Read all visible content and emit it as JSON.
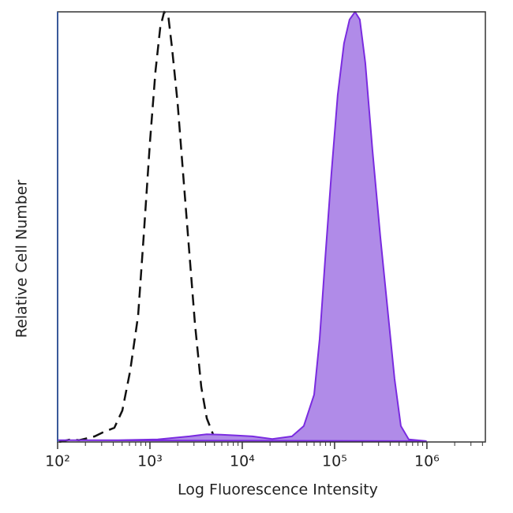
{
  "chart_data": {
    "type": "histogram-overlay",
    "xlabel": "Log Fluorescence Intensity",
    "ylabel": "Relative Cell Number",
    "xscale": "log",
    "xlim": [
      100,
      4300000
    ],
    "ylim": [
      0,
      100
    ],
    "xticks": [
      {
        "value": 100,
        "label": "10²"
      },
      {
        "value": 1000,
        "label": "10³"
      },
      {
        "value": 10000,
        "label": "10⁴"
      },
      {
        "value": 100000,
        "label": "10⁵"
      },
      {
        "value": 1000000,
        "label": "10⁶"
      }
    ],
    "xminorticks": [
      200,
      300,
      400,
      500,
      600,
      700,
      800,
      900,
      2000,
      3000,
      4000,
      5000,
      6000,
      7000,
      8000,
      9000,
      20000,
      30000,
      40000,
      50000,
      60000,
      70000,
      80000,
      90000,
      200000,
      300000,
      400000,
      500000,
      600000,
      700000,
      800000,
      900000,
      2000000,
      3000000,
      4000000
    ],
    "series": [
      {
        "color": "#111111",
        "style": "dashed",
        "filled": false,
        "x": [
          104,
          140,
          170,
          252,
          307,
          412,
          502,
          611,
          745,
          855,
          1000,
          1148,
          1291,
          1426,
          1573,
          1734,
          1991,
          2286,
          2674,
          3070,
          3594,
          4125,
          4827,
          5875,
          8710
        ],
        "values": [
          0,
          0.6,
          0.4,
          1.3,
          2.2,
          3.3,
          7.3,
          16.5,
          29.4,
          47.7,
          69.7,
          86.2,
          96.3,
          100,
          99.4,
          91.7,
          78.9,
          62.4,
          44.0,
          27.5,
          12.8,
          5.5,
          1.8,
          0.7,
          0.4
        ]
      },
      {
        "color": "#7a2be0",
        "fill": "#b08be8",
        "style": "solid",
        "filled": true,
        "x": [
          100,
          455,
          1216,
          2674,
          4125,
          5875,
          8710,
          12912,
          21130,
          34520,
          46420,
          59980,
          68870,
          78890,
          92470,
          108200,
          126700,
          145300,
          166700,
          187700,
          215400,
          257000,
          313300,
          381200,
          446400,
          522500,
          635900,
          979500
        ],
        "values": [
          0.4,
          0.4,
          0.6,
          1.3,
          1.8,
          1.7,
          1.5,
          1.3,
          0.7,
          1.3,
          3.7,
          11.0,
          23.9,
          42.2,
          62.4,
          80.7,
          92.7,
          98.2,
          100,
          98.2,
          88.1,
          67.9,
          47.7,
          29.4,
          14.7,
          3.7,
          0.6,
          0.2
        ]
      }
    ]
  }
}
